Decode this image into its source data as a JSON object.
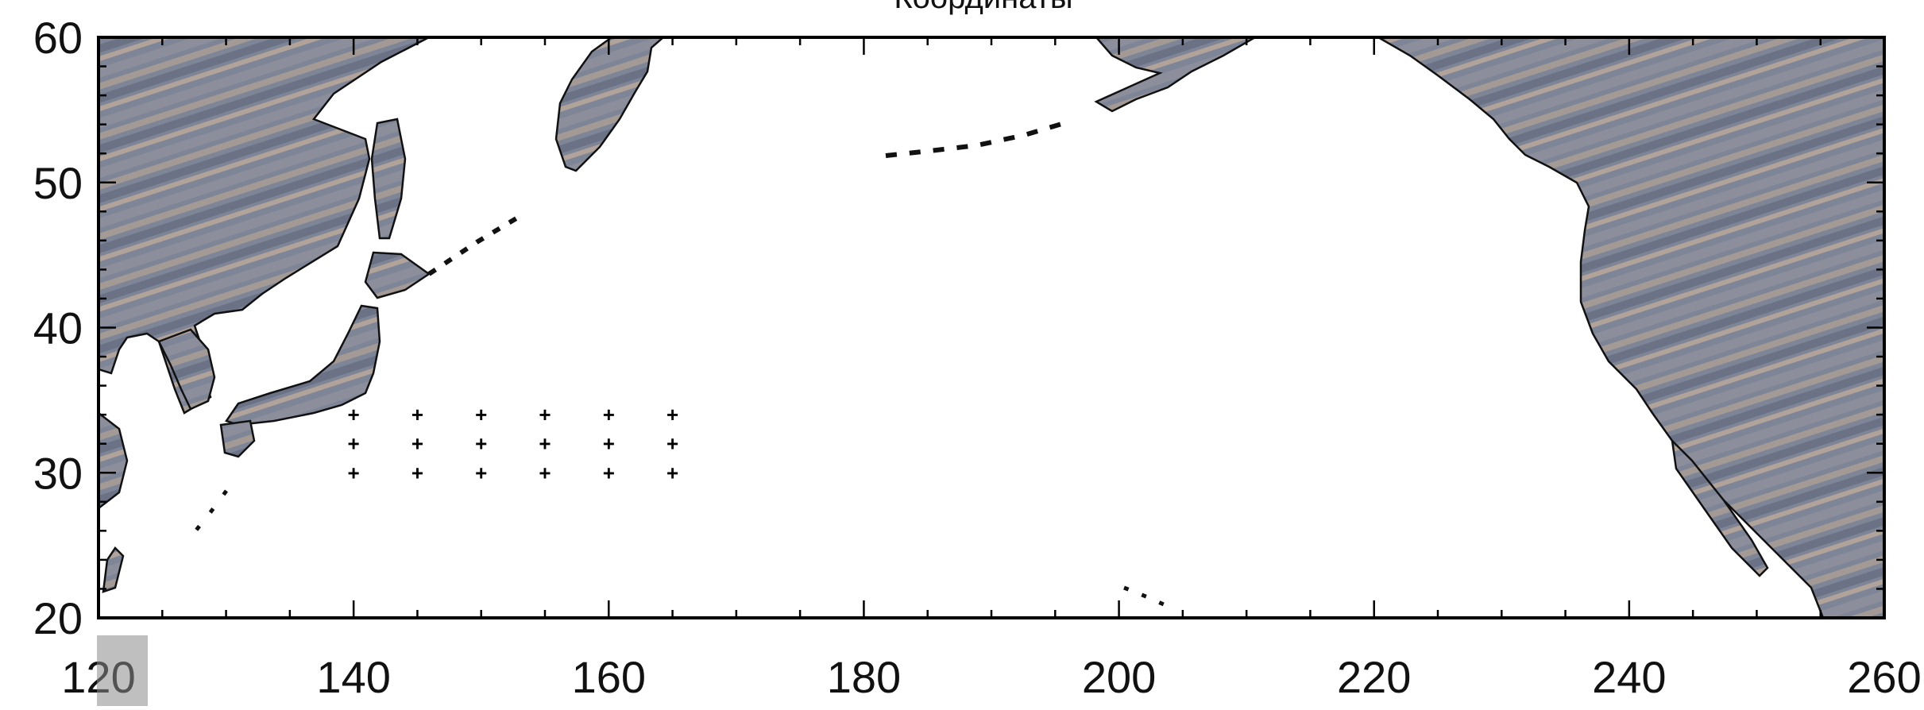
{
  "title": "Координаты",
  "x_axis": {
    "min": 120,
    "max": 260,
    "major_step": 20,
    "minor_step": 5,
    "tick_labels": [
      "120",
      "140",
      "160",
      "180",
      "200",
      "220",
      "240",
      "260"
    ]
  },
  "y_axis": {
    "min": 20,
    "max": 60,
    "major_step": 10,
    "minor_step": 2,
    "tick_labels": [
      "20",
      "30",
      "40",
      "50",
      "60"
    ]
  },
  "basemap": "North Pacific; textured land (Asia, Kamchatka, Japan, Alaska, North America), white ocean",
  "grid_points": {
    "lon": [
      140,
      145,
      150,
      155,
      160,
      165
    ],
    "lat": [
      30,
      32,
      34
    ],
    "marker": "+"
  },
  "colors": {
    "land": "#7d8494",
    "land_light": "#a89d94",
    "ocean": "#ffffff",
    "frame": "#000000",
    "points": "#000000"
  }
}
